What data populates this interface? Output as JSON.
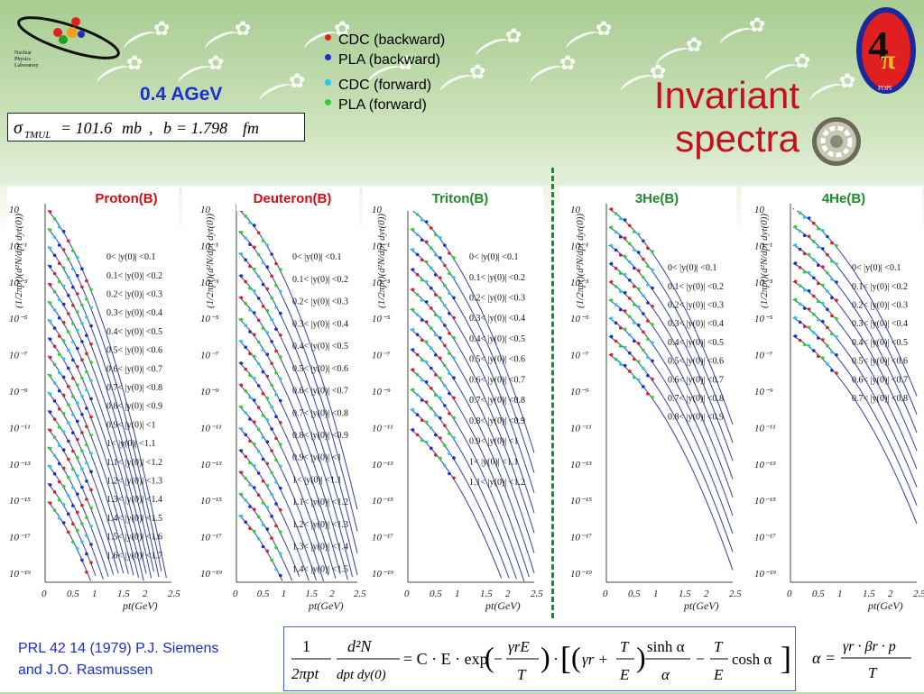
{
  "header": {
    "energy": "0.4 AGeV",
    "sigma_text": "σTMUL = 101.6mb , b = 1.798 fm",
    "title_line1": "Invariant",
    "title_line2": "spectra",
    "logo_text": [
      "Nuclear",
      "Physics",
      "Laboratory"
    ],
    "logo_right_text": "FOPI"
  },
  "legend": [
    {
      "label": "CDC (backward)",
      "color": "#e02020"
    },
    {
      "label": "PLA (backward)",
      "color": "#1a2fd0"
    },
    {
      "label": "CDC (forward)",
      "color": "#28c8e8"
    },
    {
      "label": "PLA (forward)",
      "color": "#30d030"
    }
  ],
  "panels": [
    {
      "name": "Proton(B)",
      "label_color": "#d01010",
      "type_label_main": "Proton",
      "type_label_suffix": "(B)",
      "bins": [
        "0< |y(0)| <0.1",
        "0.1< |y(0)| <0.2",
        "0.2< |y(0)| <0.3",
        "0.3< |y(0)| <0.4",
        "0.4< |y(0)| <0.5",
        "0.5< |y(0)| <0.6",
        "0.6< |y(0)| <0.7",
        "0.7< |y(0)| <0.8",
        "0.8< |y(0)| <0.9",
        "0.9< |y(0)| <1",
        "1< |y(0)| <1.1",
        "1.1< |y(0)| <1.2",
        "1.2< |y(0)| <1.3",
        "1.3< |y(0)| <1.4",
        "1.4< |y(0)| <1.5",
        "1.5< |y(0)| <1.6",
        "1.6< |y(0)| <1.7"
      ]
    },
    {
      "name": "Deuteron(B)",
      "label_color": "#d01010",
      "bins": [
        "0< |y(0)| <0.1",
        "0.1< |y(0)| <0.2",
        "0.2< |y(0)| <0.3",
        "0.3< |y(0)| <0.4",
        "0.4< |y(0)| <0.5",
        "0.5< |y(0)| <0.6",
        "0.6< |y(0)| <0.7",
        "0.7< |y(0)| <0.8",
        "0.8< |y(0)| <0.9",
        "0.9< |y(0)| <1",
        "1< |y(0)| <1.1",
        "1.1< |y(0)| <1.2",
        "1.2< |y(0)| <1.3",
        "1.3< |y(0)| <1.4",
        "1.4< |y(0)| <1.5"
      ]
    },
    {
      "name": "Triton(B)",
      "label_color": "#1e8b2a",
      "bins": [
        "0< |y(0)| <0.1",
        "0.1< |y(0)| <0.2",
        "0.2< |y(0)| <0.3",
        "0.3< |y(0)| <0.4",
        "0.4< |y(0)| <0.5",
        "0.5< |y(0)| <0.6",
        "0.6< |y(0)| <0.7",
        "0.7< |y(0)| <0.8",
        "0.8< |y(0)| <0.9",
        "0.9< |y(0)| <1",
        "1< |y(0)| <1.1",
        "1.1< |y(0)| <1.2"
      ]
    },
    {
      "name": "3He(B)",
      "label_color": "#1e8b2a",
      "bins": [
        "0< |y(0)| <0.1",
        "0.1< |y(0)| <0.2",
        "0.2< |y(0)| <0.3",
        "0.3< |y(0)| <0.4",
        "0.4< |y(0)| <0.5",
        "0.5< |y(0)| <0.6",
        "0.6< |y(0)| <0.7",
        "0.7< |y(0)| <0.8",
        "0.8< |y(0)| <0.9"
      ]
    },
    {
      "name": "4He(B)",
      "label_color": "#1e8b2a",
      "bins": [
        "0< |y(0)| <0.1",
        "0.1< |y(0)| <0.2",
        "0.2< |y(0)| <0.3",
        "0.3< |y(0)| <0.4",
        "0.4< |y(0)| <0.5",
        "0.5< |y(0)| <0.6",
        "0.6< |y(0)| <0.7",
        "0.7< |y(0)| <0.8"
      ]
    }
  ],
  "axes": {
    "xlabel": "pt(GeV)",
    "ylabel": "(1/2πpt)(d²N/dpt dyt(0))",
    "xticks": [
      "0",
      "0.5",
      "1",
      "1.5",
      "2",
      "2.5"
    ],
    "yticks": [
      "10",
      "10⁻¹",
      "10⁻³",
      "10⁻⁵",
      "10⁻⁷",
      "10⁻⁹",
      "10⁻¹¹",
      "10⁻¹³",
      "10⁻¹⁵",
      "10⁻¹⁷",
      "10⁻¹⁹"
    ]
  },
  "chart_data": [
    {
      "type": "scatter",
      "title": "Proton(B)",
      "xlabel": "pt(GeV)",
      "xlim": [
        0,
        2.5
      ],
      "ylim": [
        -19,
        1
      ],
      "log_y": true,
      "series": [
        {
          "name": "0< |y(0)| <0.1"
        }
      ]
    },
    {
      "type": "scatter",
      "title": "Deuteron(B)",
      "xlabel": "pt(GeV)",
      "xlim": [
        0,
        2.5
      ],
      "log_y": true
    },
    {
      "type": "scatter",
      "title": "Triton(B)",
      "xlabel": "pt(GeV)",
      "xlim": [
        0,
        2.5
      ],
      "log_y": true
    },
    {
      "type": "scatter",
      "title": "3He(B)",
      "xlabel": "pt(GeV)",
      "xlim": [
        0,
        2.5
      ],
      "log_y": true
    },
    {
      "type": "scatter",
      "title": "4He(B)",
      "xlabel": "pt(GeV)",
      "xlim": [
        0,
        2.5
      ],
      "log_y": true
    }
  ],
  "reference": {
    "line1": "PRL 42 14 (1979) P.J. Siemens",
    "line2": "and J.O. Rasmussen"
  },
  "formula": {
    "lhs_num": "1",
    "lhs_den": "2πpt",
    "d2n_num": "d²N",
    "d2n_den": "dpt dy(0)",
    "eq": "= C · E · exp",
    "gamma_e": "γrE",
    "T": "T",
    "gamma_r": "γr +",
    "sinh": "sinh α",
    "alpha": "α",
    "cosh": "cosh α",
    "alpha_eq": "α =",
    "alpha_num": "γr · βr · p",
    "alpha_den": "T"
  }
}
